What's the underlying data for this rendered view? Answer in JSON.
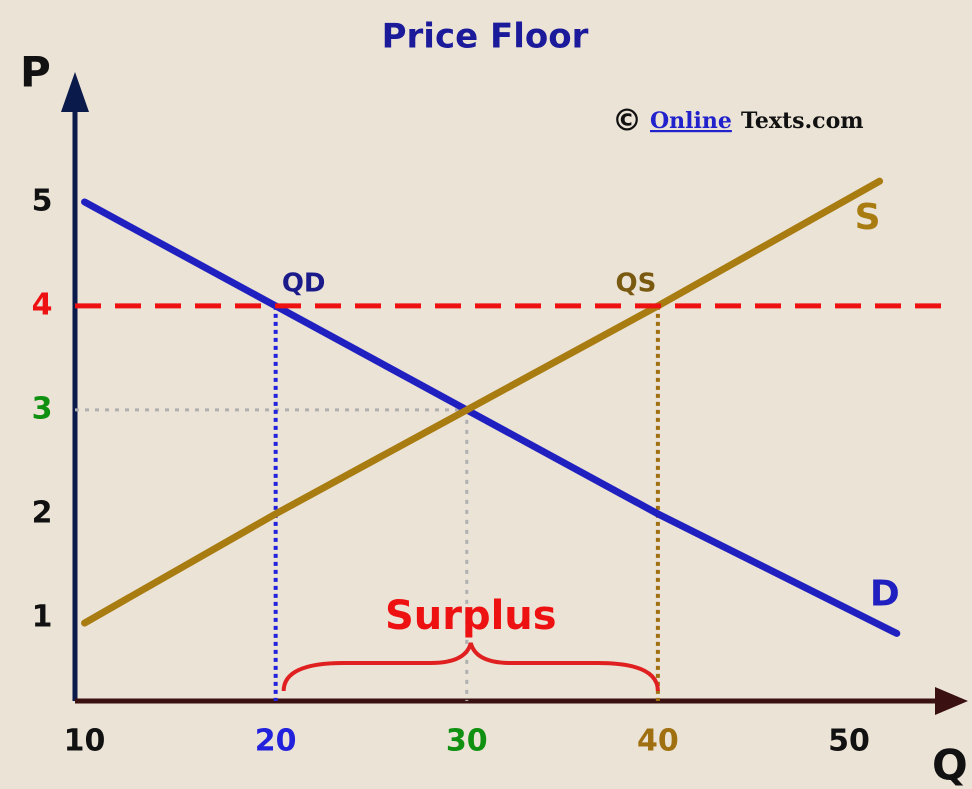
{
  "chart_data": {
    "type": "line",
    "title": "Price Floor",
    "x_label": "Q",
    "y_label": "P",
    "xlim": [
      9.5,
      54.5
    ],
    "ylim": [
      0.2,
      6
    ],
    "xticks": [
      10,
      20,
      30,
      40,
      50
    ],
    "yticks": [
      1,
      2,
      3,
      4,
      5
    ],
    "xtick_colors": [
      "#111111",
      "#2222dd",
      "#109010",
      "#a07010",
      "#111111"
    ],
    "ytick_colors": [
      "#111111",
      "#111111",
      "#109010",
      "#ee1111",
      "#111111"
    ],
    "series": [
      {
        "name": "D",
        "color": "#2020c0",
        "x": [
          10,
          20,
          30,
          40,
          52.5
        ],
        "values": [
          5,
          4,
          3,
          2,
          0.85
        ]
      },
      {
        "name": "S",
        "color": "#a87c10",
        "x": [
          10,
          20,
          30,
          40,
          51.6
        ],
        "values": [
          0.95,
          2,
          3,
          4,
          5.2
        ]
      }
    ],
    "price_floor": {
      "value": 4,
      "color": "#ee1111"
    },
    "equilibrium": {
      "q": 30,
      "p": 3
    },
    "quantity_demanded": {
      "q": 20,
      "label": "QD",
      "color": "#2222dd"
    },
    "quantity_supplied": {
      "q": 40,
      "label": "QS",
      "color": "#a07010"
    },
    "surplus_label": "Surplus",
    "credit_symbol": "©",
    "credit_link": "Online",
    "credit_rest": "Texts.com"
  }
}
